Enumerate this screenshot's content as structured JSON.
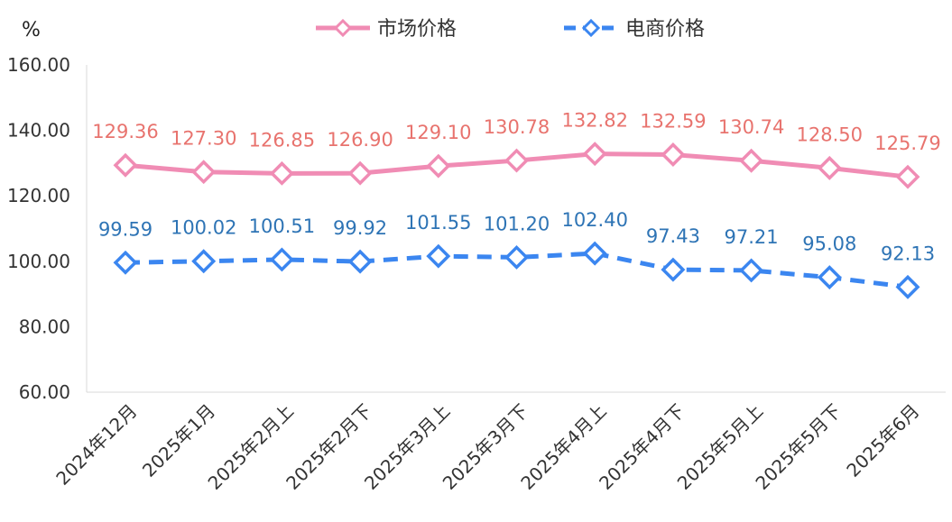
{
  "chart_data": {
    "type": "line",
    "ylabel": "%",
    "ylim": [
      60,
      160
    ],
    "yticks": [
      "60.00",
      "80.00",
      "100.00",
      "120.00",
      "140.00",
      "160.00"
    ],
    "categories": [
      "2024年12月",
      "2025年1月",
      "2025年2月上",
      "2025年2月下",
      "2025年3月上",
      "2025年3月下",
      "2025年4月上",
      "2025年4月下",
      "2025年5月上",
      "2025年5月下",
      "2025年6月"
    ],
    "series": [
      {
        "name": "市场价格",
        "color": "#f08cb4",
        "label_color": "#e8736e",
        "line_style": "solid",
        "marker": "diamond",
        "values": [
          129.36,
          127.3,
          126.85,
          126.9,
          129.1,
          130.78,
          132.82,
          132.59,
          130.74,
          128.5,
          125.79
        ],
        "labels": [
          "129.36",
          "127.30",
          "126.85",
          "126.90",
          "129.10",
          "130.78",
          "132.82",
          "132.59",
          "130.74",
          "128.50",
          "125.79"
        ]
      },
      {
        "name": "电商价格",
        "color": "#3b86f0",
        "label_color": "#2e74b5",
        "line_style": "dashed",
        "marker": "diamond",
        "values": [
          99.59,
          100.02,
          100.51,
          99.92,
          101.55,
          101.2,
          102.4,
          97.43,
          97.21,
          95.08,
          92.13
        ],
        "labels": [
          "99.59",
          "100.02",
          "100.51",
          "99.92",
          "101.55",
          "101.20",
          "102.40",
          "97.43",
          "97.21",
          "95.08",
          "92.13"
        ]
      }
    ],
    "grid": false,
    "legend": "top-center"
  }
}
